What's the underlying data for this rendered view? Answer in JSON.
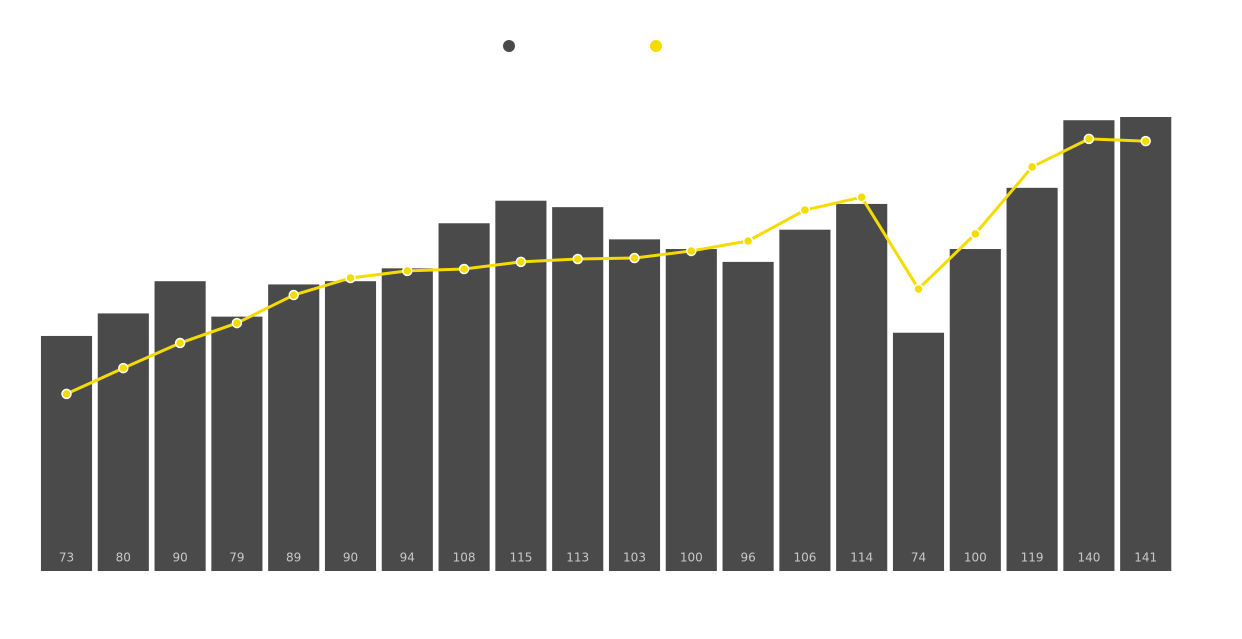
{
  "chart_data": {
    "type": "bar-line",
    "series": [
      {
        "type": "bar",
        "color": "#4a4a4a",
        "values": [
          73,
          80,
          90,
          79,
          89,
          90,
          94,
          108,
          115,
          113,
          103,
          100,
          96,
          106,
          114,
          74,
          100,
          119,
          140,
          141
        ]
      },
      {
        "type": "line",
        "color": "#f5dc00",
        "values": [
          55,
          63,
          70.8,
          77,
          85.7,
          91,
          93.2,
          93.8,
          96,
          96.9,
          97.2,
          99.4,
          102.5,
          112.1,
          116.1,
          87.6,
          104.7,
          125.5,
          134.2,
          133.5
        ]
      }
    ],
    "ylim": [
      0,
      141
    ]
  }
}
